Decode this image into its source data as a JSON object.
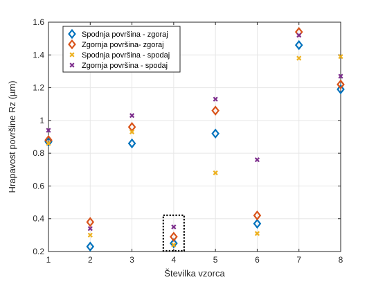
{
  "chart_data": {
    "type": "scatter",
    "title": "",
    "xlabel": "Številka vzorca",
    "ylabel": "Hrapavost površine Rz (µm)",
    "xlim": [
      1,
      8
    ],
    "ylim": [
      0.2,
      1.6
    ],
    "xticks": [
      "1",
      "2",
      "3",
      "4",
      "5",
      "6",
      "7",
      "8"
    ],
    "yticks": [
      "0.2",
      "0.4",
      "0.6",
      "0.8",
      "1",
      "1.2",
      "1.4",
      "1.6"
    ],
    "grid": true,
    "legend_position": "top-left",
    "x": [
      1,
      2,
      3,
      4,
      5,
      6,
      7,
      8
    ],
    "series": [
      {
        "name": "Spodnja površina - zgoraj",
        "marker": "diamond",
        "color": "#0072BD",
        "values": [
          0.87,
          0.23,
          0.86,
          0.25,
          0.92,
          0.37,
          1.46,
          1.19
        ]
      },
      {
        "name": "Zgornja površina- zgoraj",
        "marker": "diamond",
        "color": "#D95319",
        "values": [
          0.88,
          0.38,
          0.96,
          0.29,
          1.06,
          0.42,
          1.54,
          1.22
        ]
      },
      {
        "name": "Spodnja površina - spodaj",
        "marker": "x",
        "color": "#EDB120",
        "values": [
          0.86,
          0.3,
          0.93,
          0.24,
          0.68,
          0.31,
          1.38,
          1.39
        ]
      },
      {
        "name": "Zgornja površina - spodaj",
        "marker": "x",
        "color": "#7E2F8E",
        "values": [
          0.94,
          0.34,
          1.03,
          0.35,
          1.13,
          0.76,
          1.52,
          1.27
        ]
      }
    ],
    "annotations": [
      {
        "type": "dotted-box",
        "x": 4,
        "y_range": [
          0.2,
          0.4
        ]
      }
    ]
  }
}
